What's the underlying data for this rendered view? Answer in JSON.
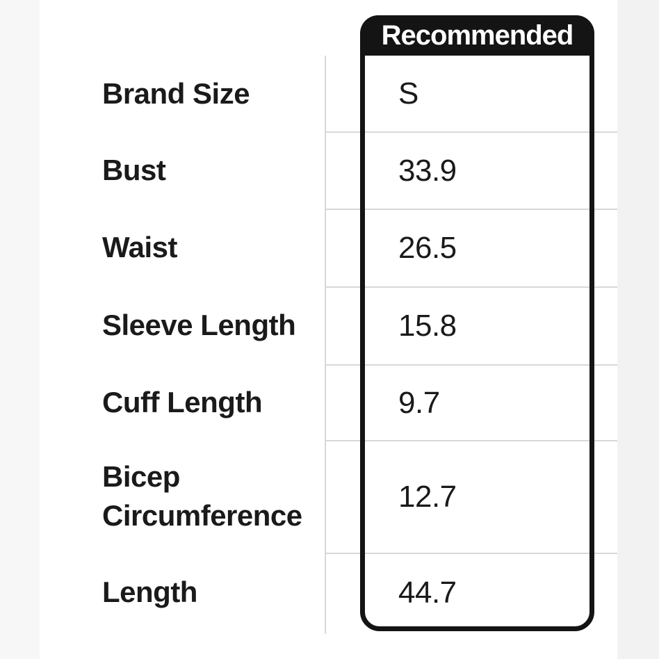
{
  "size_chart": {
    "recommended_header": "Recommended",
    "rows": [
      {
        "label": "Brand Size",
        "value": "S"
      },
      {
        "label": "Bust",
        "value": "33.9"
      },
      {
        "label": "Waist",
        "value": "26.5"
      },
      {
        "label": "Sleeve Length",
        "value": "15.8"
      },
      {
        "label": "Cuff Length",
        "value": "9.7"
      },
      {
        "label": "Bicep Circumference",
        "value": "12.7"
      },
      {
        "label": "Length",
        "value": "44.7"
      }
    ]
  },
  "colors": {
    "header_bg": "#141414",
    "text": "#1a1a1a",
    "gridline": "#d8d8d8",
    "strip_left": "#f7f7f7",
    "strip_right": "#f2f2f2"
  }
}
